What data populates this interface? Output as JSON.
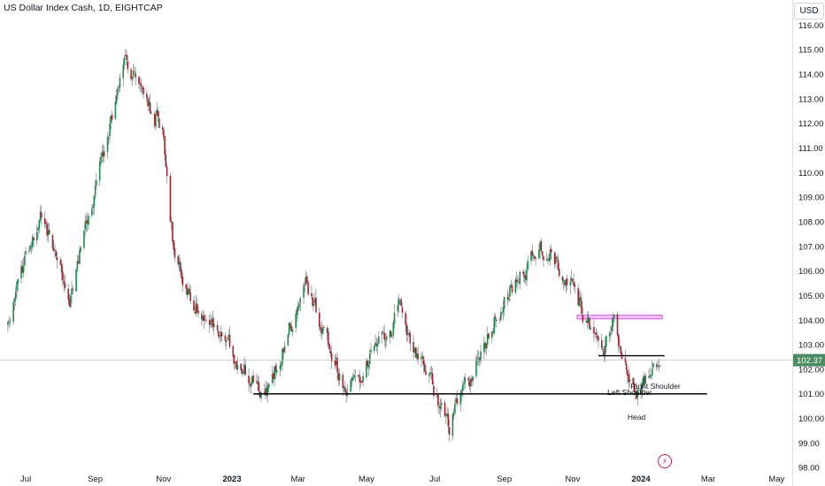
{
  "header": {
    "title": "US Dollar Index Cash, 1D, EIGHTCAP",
    "currency": "USD"
  },
  "icons": {
    "alert": "lightning-bolt-icon"
  },
  "colors": {
    "up": "#1e8b4a",
    "down": "#a3242a",
    "wick": "#6b6f7a",
    "price_tag": "#4c8b63",
    "resistance_zone": "#d05ae0"
  },
  "chart_data": {
    "type": "candlestick",
    "symbol": "US Dollar Index Cash",
    "interval": "1D",
    "source": "EIGHTCAP",
    "x_ticks": [
      "Jul",
      "Sep",
      "Nov",
      "2023",
      "Mar",
      "May",
      "Jul",
      "Sep",
      "Nov",
      "2024",
      "Mar",
      "May"
    ],
    "bold_ticks": [
      "2023",
      "2024"
    ],
    "y_ticks": [
      "98.00",
      "99.00",
      "100.00",
      "101.00",
      "102.00",
      "103.00",
      "104.00",
      "105.00",
      "106.00",
      "107.00",
      "108.00",
      "109.00",
      "110.00",
      "111.00",
      "112.00",
      "113.00",
      "114.00",
      "115.00",
      "116.00"
    ],
    "ylim": [
      97.9,
      116.3
    ],
    "last_price": "102.37",
    "grid": false,
    "anchors": [
      {
        "date": "2022-06-15",
        "y": 103.8
      },
      {
        "date": "2022-07-14",
        "y": 108.5
      },
      {
        "date": "2022-08-10",
        "y": 105.0
      },
      {
        "date": "2022-09-27",
        "y": 114.7
      },
      {
        "date": "2022-10-14",
        "y": 113.2
      },
      {
        "date": "2022-11-01",
        "y": 111.7
      },
      {
        "date": "2022-11-11",
        "y": 106.3
      },
      {
        "date": "2022-12-01",
        "y": 104.5
      },
      {
        "date": "2023-01-25",
        "y": 101.3
      },
      {
        "date": "2023-02-01",
        "y": 101.0
      },
      {
        "date": "2023-03-08",
        "y": 105.6
      },
      {
        "date": "2023-04-14",
        "y": 101.0
      },
      {
        "date": "2023-05-31",
        "y": 104.3
      },
      {
        "date": "2023-07-14",
        "y": 99.7
      },
      {
        "date": "2023-08-25",
        "y": 104.2
      },
      {
        "date": "2023-10-03",
        "y": 107.1
      },
      {
        "date": "2023-10-24",
        "y": 106.0
      },
      {
        "date": "2023-11-14",
        "y": 104.0
      },
      {
        "date": "2023-11-28",
        "y": 102.6
      },
      {
        "date": "2023-12-08",
        "y": 104.0
      },
      {
        "date": "2023-12-27",
        "y": 100.9
      },
      {
        "date": "2024-01-18",
        "y": 102.5
      }
    ],
    "horizontal_lines": [
      {
        "y": 101.0,
        "from": "2023-01-20",
        "to": "2024-02-29"
      },
      {
        "y": 102.55,
        "from": "2023-11-24",
        "to": "2024-01-22"
      }
    ],
    "zone": {
      "y_from": 104.05,
      "y_to": 104.2,
      "from": "2023-11-05",
      "to": "2024-01-20"
    },
    "annotations": [
      {
        "text": "Left Shoulder",
        "date": "2023-12-22",
        "y": 100.95
      },
      {
        "text": "Right Shoulder",
        "date": "2024-01-14",
        "y": 101.2
      },
      {
        "text": "Head",
        "date": "2023-12-28",
        "y": 99.95
      }
    ]
  }
}
